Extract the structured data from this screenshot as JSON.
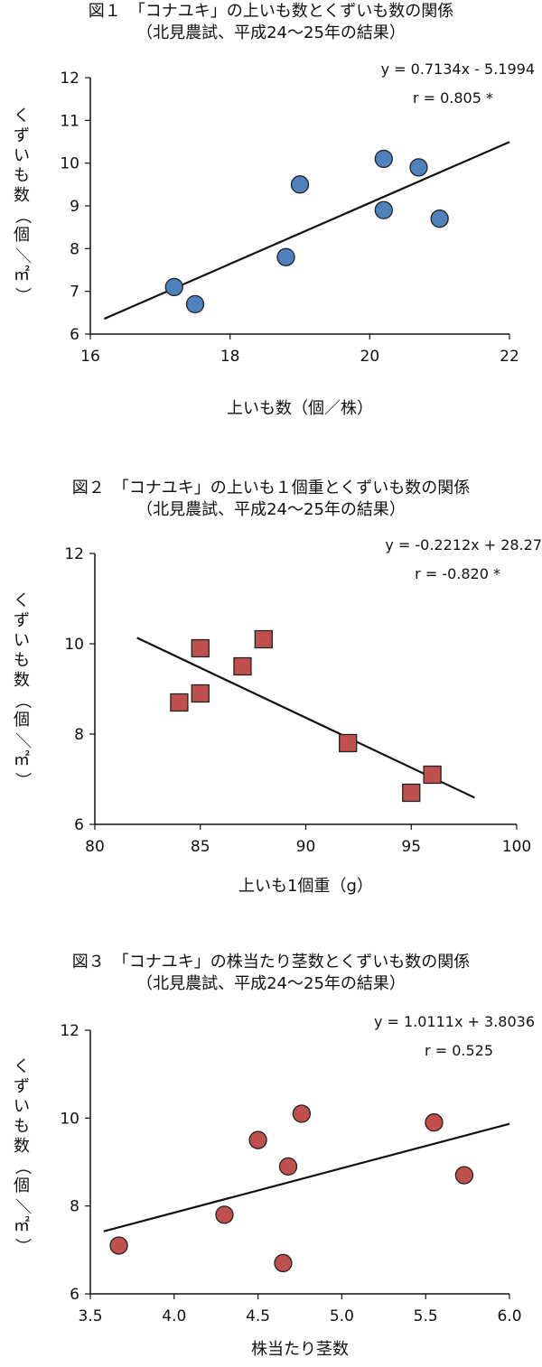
{
  "figures": [
    {
      "title": "図１　「コナユキ」の上いも数とくずいも数の関係",
      "subtitle": "（北見農試、平成24～25年の結果）",
      "chart_data": {
        "type": "scatter",
        "xlabel": "上いも数（個／株）",
        "ylabel": "くずいも数（個／㎡）",
        "xlim": [
          16,
          22
        ],
        "ylim": [
          6,
          12
        ],
        "xticks": [
          16,
          18,
          20,
          22
        ],
        "yticks": [
          6,
          7,
          8,
          9,
          10,
          11,
          12
        ],
        "xtick_labels": [
          "16",
          "18",
          "20",
          "22"
        ],
        "ytick_labels": [
          "6",
          "7",
          "8",
          "9",
          "10",
          "11",
          "12"
        ],
        "marker": "circle",
        "marker_color": "#4f81bd",
        "points": [
          {
            "x": 17.2,
            "y": 7.1
          },
          {
            "x": 17.5,
            "y": 6.7
          },
          {
            "x": 18.8,
            "y": 7.8
          },
          {
            "x": 19.0,
            "y": 9.5
          },
          {
            "x": 20.2,
            "y": 10.1
          },
          {
            "x": 20.2,
            "y": 8.9
          },
          {
            "x": 20.7,
            "y": 9.9
          },
          {
            "x": 21.0,
            "y": 8.7
          }
        ],
        "trendline": {
          "slope": 0.7134,
          "intercept": -5.1994,
          "x_range": [
            16.2,
            22.0
          ]
        },
        "equation": "y = 0.7134x - 5.1994",
        "r_text": "r = 0.805 *"
      }
    },
    {
      "title": "図２　「コナユキ」の上いも１個重とくずいも数の関係",
      "subtitle": "（北見農試、平成24～25年の結果）",
      "chart_data": {
        "type": "scatter",
        "xlabel": "上いも1個重（g）",
        "ylabel": "くずいも数（個／㎡）",
        "xlim": [
          80,
          100
        ],
        "ylim": [
          6,
          12
        ],
        "xticks": [
          80,
          85,
          90,
          95,
          100
        ],
        "yticks": [
          6,
          8,
          10,
          12
        ],
        "xtick_labels": [
          "80",
          "85",
          "90",
          "95",
          "100"
        ],
        "ytick_labels": [
          "6",
          "8",
          "10",
          "12"
        ],
        "marker": "square",
        "marker_color": "#c0504d",
        "points": [
          {
            "x": 84,
            "y": 8.7
          },
          {
            "x": 85,
            "y": 9.9
          },
          {
            "x": 85,
            "y": 8.9
          },
          {
            "x": 87,
            "y": 9.5
          },
          {
            "x": 88,
            "y": 10.1
          },
          {
            "x": 92,
            "y": 7.8
          },
          {
            "x": 95,
            "y": 6.7
          },
          {
            "x": 96,
            "y": 7.1
          }
        ],
        "trendline": {
          "slope": -0.2212,
          "intercept": 28.27,
          "x_range": [
            82,
            98
          ]
        },
        "equation": "y = -0.2212x + 28.27",
        "r_text": "r = -0.820 *"
      }
    },
    {
      "title": "図３　「コナユキ」の株当たり茎数とくずいも数の関係",
      "subtitle": "（北見農試、平成24～25年の結果）",
      "chart_data": {
        "type": "scatter",
        "xlabel": "株当たり茎数",
        "ylabel": "くずいも数（個／㎡）",
        "xlim": [
          3.5,
          6.0
        ],
        "ylim": [
          6,
          12
        ],
        "xticks": [
          3.5,
          4.0,
          4.5,
          5.0,
          5.5,
          6.0
        ],
        "yticks": [
          6,
          8,
          10,
          12
        ],
        "xtick_labels": [
          "3.5",
          "4.0",
          "4.5",
          "5.0",
          "5.5",
          "6.0"
        ],
        "ytick_labels": [
          "6",
          "8",
          "10",
          "12"
        ],
        "marker": "circle",
        "marker_color": "#c0504d",
        "points": [
          {
            "x": 3.67,
            "y": 7.1
          },
          {
            "x": 4.3,
            "y": 7.8
          },
          {
            "x": 4.5,
            "y": 9.5
          },
          {
            "x": 4.65,
            "y": 6.7
          },
          {
            "x": 4.68,
            "y": 8.9
          },
          {
            "x": 4.76,
            "y": 10.1
          },
          {
            "x": 5.55,
            "y": 9.9
          },
          {
            "x": 5.73,
            "y": 8.7
          }
        ],
        "trendline": {
          "slope": 1.0111,
          "intercept": 3.8036,
          "x_range": [
            3.58,
            6.0
          ]
        },
        "equation": "y = 1.0111x + 3.8036",
        "r_text": "r = 0.525"
      }
    }
  ]
}
